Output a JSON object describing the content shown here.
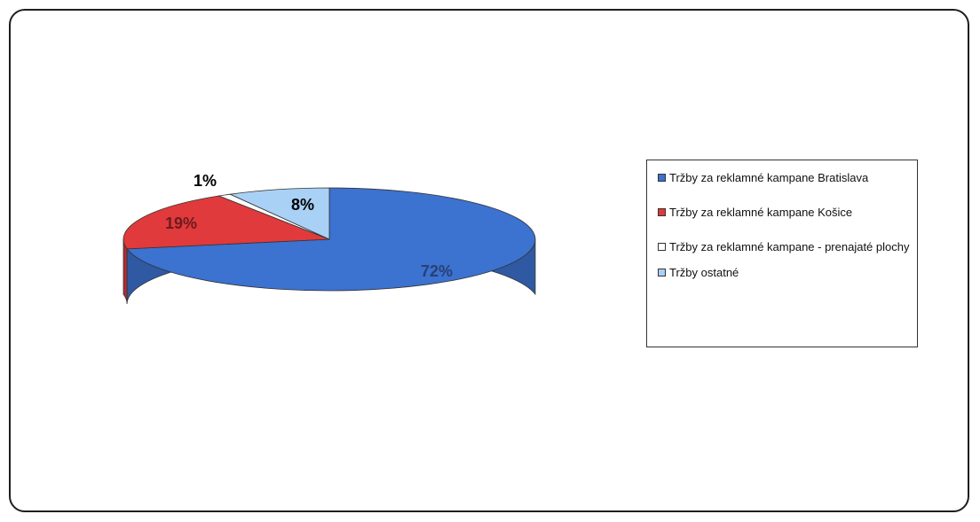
{
  "chart_data": {
    "type": "pie",
    "style": "3d",
    "title": "",
    "series": [
      {
        "values": [
          72,
          19,
          1,
          8
        ],
        "labels": [
          "72%",
          "19%",
          "1%",
          "8%"
        ],
        "categories": [
          "Tržby za reklamné kampane Bratislava",
          "Tržby za reklamné kampane Košice",
          "Tržby za reklamné kampane - prenajaté plochy",
          "Tržby ostatné"
        ],
        "colors": [
          "#3c72d0",
          "#e03a3c",
          "#ffffff",
          "#a9d1f5"
        ]
      }
    ],
    "legend_position": "right"
  }
}
